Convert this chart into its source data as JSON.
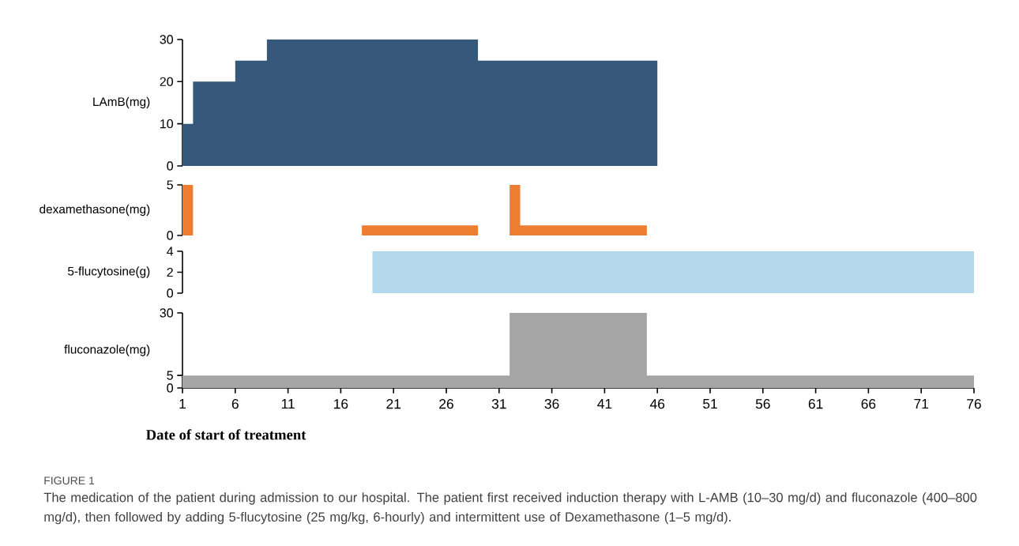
{
  "chart_data": [
    {
      "type": "area",
      "ylabel": "LAmB(mg)",
      "x": [
        1,
        2,
        2,
        6,
        6,
        9,
        9,
        29,
        29,
        46
      ],
      "values": [
        10,
        10,
        20,
        20,
        25,
        25,
        30,
        30,
        25,
        25
      ],
      "color": "#36597b",
      "xlim": [
        1,
        76
      ],
      "ylim": [
        0,
        30
      ],
      "yticks": [
        0,
        10,
        20,
        30
      ],
      "tick_labels": "y"
    },
    {
      "type": "area",
      "ylabel": "dexamethasone(mg)",
      "x": [
        1,
        2,
        2,
        18,
        18,
        29,
        29,
        32,
        32,
        33,
        33,
        45
      ],
      "values": [
        5,
        5,
        0,
        0,
        1,
        1,
        0,
        0,
        5,
        5,
        1,
        1
      ],
      "color": "#ed7d31",
      "xlim": [
        1,
        76
      ],
      "ylim": [
        0,
        5
      ],
      "yticks": [
        0,
        5
      ],
      "tick_labels": "y"
    },
    {
      "type": "area",
      "ylabel": "5-flucytosine(g)",
      "x": [
        19,
        76
      ],
      "values": [
        4,
        4
      ],
      "color": "#b3d7ec",
      "xlim": [
        1,
        76
      ],
      "ylim": [
        0,
        4
      ],
      "yticks": [
        0,
        2,
        4
      ],
      "tick_labels": "y"
    },
    {
      "type": "area",
      "ylabel": "fluconazole(mg)",
      "xlabel": "Date of start of treatment",
      "x": [
        1,
        32,
        32,
        45,
        45,
        76
      ],
      "values": [
        5,
        5,
        30,
        30,
        5,
        5
      ],
      "color": "#a5a5a5",
      "xlim": [
        1,
        76
      ],
      "ylim": [
        0,
        30
      ],
      "yticks": [
        0,
        5,
        30
      ],
      "xticks": [
        1,
        6,
        11,
        16,
        21,
        26,
        31,
        36,
        41,
        46,
        51,
        56,
        61,
        66,
        71,
        76
      ],
      "annotations": [
        "FIGURE 1",
        "The medication of the patient during admission to our hospital. The patient first received induction therapy with L-AMB (10–30 mg/d) and fluconazole (400–800 mg/d), then followed by adding 5-flucytosine (25 mg/kg, 6-hourly) and intermittent use of Dexamethasone (1–5 mg/d)."
      ]
    }
  ]
}
